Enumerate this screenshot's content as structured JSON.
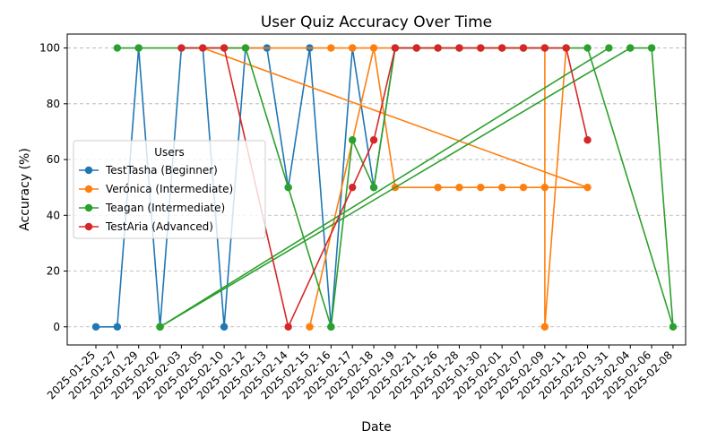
{
  "chart_data": {
    "type": "line",
    "title": "User Quiz Accuracy Over Time",
    "xlabel": "Date",
    "ylabel": "Accuracy (%)",
    "categories": [
      "2025-01-25",
      "2025-01-27",
      "2025-01-29",
      "2025-02-02",
      "2025-02-03",
      "2025-02-05",
      "2025-02-10",
      "2025-02-12",
      "2025-02-13",
      "2025-02-14",
      "2025-02-15",
      "2025-02-16",
      "2025-02-17",
      "2025-02-18",
      "2025-02-19",
      "2025-02-21",
      "2025-01-26",
      "2025-01-28",
      "2025-01-30",
      "2025-02-01",
      "2025-02-07",
      "2025-02-09",
      "2025-02-11",
      "2025-02-20",
      "2025-01-31",
      "2025-02-04",
      "2025-02-06",
      "2025-02-08"
    ],
    "yticks": [
      0,
      20,
      40,
      60,
      80,
      100
    ],
    "ylim": [
      -6.5,
      105
    ],
    "grid": "y-dashed",
    "legend": {
      "title": "Users",
      "placement": "center-left"
    },
    "series": [
      {
        "name": "TestTasha (Beginner)",
        "color": "#1f77b4",
        "points": [
          [
            "2025-01-25",
            0
          ],
          [
            "2025-01-27",
            0
          ],
          [
            "2025-01-29",
            100
          ],
          [
            "2025-02-02",
            0
          ],
          [
            "2025-02-03",
            100
          ],
          [
            "2025-02-05",
            100
          ],
          [
            "2025-02-10",
            0
          ],
          [
            "2025-02-12",
            100
          ],
          [
            "2025-02-13",
            100
          ],
          [
            "2025-02-14",
            50
          ],
          [
            "2025-02-15",
            100
          ],
          [
            "2025-02-16",
            0
          ],
          [
            "2025-02-17",
            100
          ],
          [
            "2025-02-18",
            50
          ],
          [
            "2025-02-19",
            100
          ],
          [
            "2025-02-21",
            100
          ]
        ]
      },
      {
        "name": "Verónica (Intermediate)",
        "color": "#ff7f0e",
        "points": [
          [
            "2025-02-15",
            0
          ],
          [
            "2025-02-18",
            100
          ],
          [
            "2025-02-19",
            50
          ],
          [
            "2025-01-26",
            50
          ],
          [
            "2025-01-28",
            50
          ],
          [
            "2025-01-30",
            50
          ],
          [
            "2025-02-01",
            50
          ],
          [
            "2025-02-07",
            50
          ],
          [
            "2025-02-09",
            50
          ],
          [
            "2025-02-20",
            50
          ],
          [
            "2025-02-05",
            100
          ],
          [
            "2025-02-10",
            100
          ],
          [
            "2025-02-12",
            100
          ],
          [
            "2025-02-16",
            100
          ],
          [
            "2025-02-17",
            100
          ],
          [
            "2025-02-21",
            100
          ],
          [
            "2025-01-26",
            100
          ],
          [
            "2025-01-28",
            100
          ],
          [
            "2025-01-30",
            100
          ],
          [
            "2025-02-01",
            100
          ],
          [
            "2025-02-07",
            100
          ],
          [
            "2025-02-09",
            100
          ],
          [
            "2025-02-09",
            0
          ],
          [
            "2025-02-11",
            100
          ]
        ]
      },
      {
        "name": "Teagan (Intermediate)",
        "color": "#2ca02c",
        "points": [
          [
            "2025-01-27",
            100
          ],
          [
            "2025-01-29",
            100
          ],
          [
            "2025-02-10",
            100
          ],
          [
            "2025-02-12",
            100
          ],
          [
            "2025-02-14",
            50
          ],
          [
            "2025-02-16",
            0
          ],
          [
            "2025-02-17",
            67
          ],
          [
            "2025-02-18",
            50
          ],
          [
            "2025-02-19",
            100
          ],
          [
            "2025-02-21",
            100
          ],
          [
            "2025-01-26",
            100
          ],
          [
            "2025-01-28",
            100
          ],
          [
            "2025-01-30",
            100
          ],
          [
            "2025-02-01",
            100
          ],
          [
            "2025-02-07",
            100
          ],
          [
            "2025-02-09",
            100
          ],
          [
            "2025-02-11",
            100
          ],
          [
            "2025-02-20",
            100
          ],
          [
            "2025-02-08",
            0
          ],
          [
            "2025-02-06",
            100
          ],
          [
            "2025-02-04",
            100
          ],
          [
            "2025-02-02",
            0
          ],
          [
            "2025-01-31",
            100
          ],
          [
            "2025-02-02",
            0
          ],
          [
            "2025-02-04",
            100
          ],
          [
            "2025-02-06",
            100
          ]
        ]
      },
      {
        "name": "TestAria (Advanced)",
        "color": "#d62728",
        "points": [
          [
            "2025-02-03",
            100
          ],
          [
            "2025-02-05",
            100
          ],
          [
            "2025-02-10",
            100
          ],
          [
            "2025-02-14",
            0
          ],
          [
            "2025-02-17",
            50
          ],
          [
            "2025-02-18",
            67
          ],
          [
            "2025-02-19",
            100
          ],
          [
            "2025-02-21",
            100
          ],
          [
            "2025-01-26",
            100
          ],
          [
            "2025-01-28",
            100
          ],
          [
            "2025-01-30",
            100
          ],
          [
            "2025-02-01",
            100
          ],
          [
            "2025-02-07",
            100
          ],
          [
            "2025-02-09",
            100
          ],
          [
            "2025-02-11",
            100
          ],
          [
            "2025-02-20",
            67
          ]
        ]
      }
    ]
  }
}
